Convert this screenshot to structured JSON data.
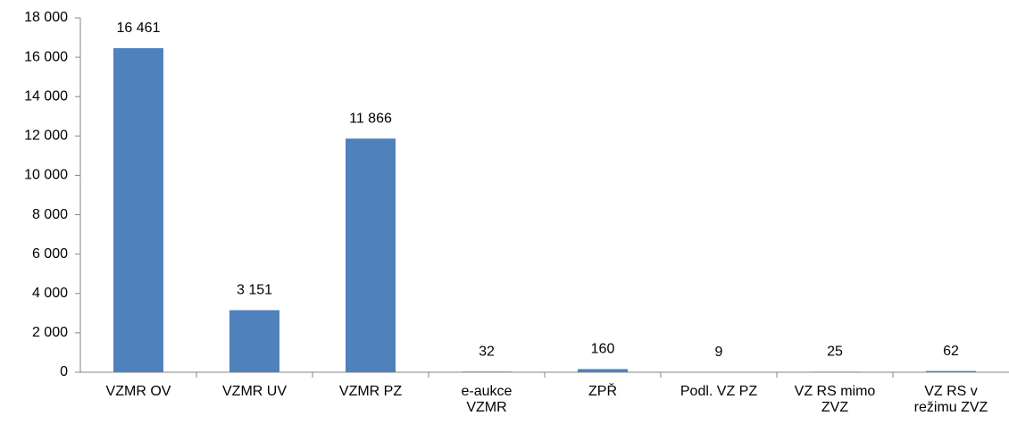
{
  "chart_data": {
    "type": "bar",
    "categories": [
      "VZMR OV",
      "VZMR UV",
      "VZMR PZ",
      "e-aukce VZMR",
      "ZPŘ",
      "Podl. VZ PZ",
      "VZ RS mimo ZVZ",
      "VZ RS v režimu ZVZ"
    ],
    "values": [
      16461,
      3151,
      11866,
      32,
      160,
      9,
      25,
      62
    ],
    "value_labels": [
      "16 461",
      "3 151",
      "11 866",
      "32",
      "160",
      "9",
      "25",
      "62"
    ],
    "color": "#4f81bd",
    "ylim": [
      0,
      18000
    ],
    "yticks": [
      0,
      {
        "value": 2000,
        "label": "2 000"
      },
      {
        "value": 4000,
        "label": "4 000"
      },
      {
        "value": 6000,
        "label": "6 000"
      },
      {
        "value": 8000,
        "label": "8 000"
      },
      {
        "value": 10000,
        "label": "10 000"
      },
      {
        "value": 12000,
        "label": "12 000"
      },
      {
        "value": 14000,
        "label": "14 000"
      },
      {
        "value": 16000,
        "label": "16 000"
      },
      {
        "value": 18000,
        "label": "18 000"
      }
    ],
    "grid": false
  }
}
